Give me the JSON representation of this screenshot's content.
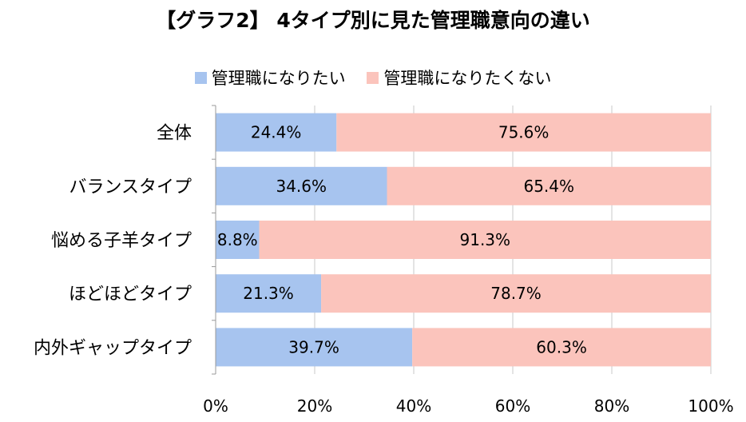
{
  "chart_data": {
    "type": "bar",
    "orientation": "horizontal",
    "stacked": true,
    "title": "【グラフ2】 4タイプ別に見た管理職意向の違い",
    "categories": [
      "全体",
      "バランスタイプ",
      "悩める子羊タイプ",
      "ほどほどタイプ",
      "内外ギャップタイプ"
    ],
    "series": [
      {
        "name": "管理職になりたい",
        "color": "#a7c4ef",
        "values": [
          24.4,
          34.6,
          8.8,
          21.3,
          39.7
        ],
        "labels": [
          "24.4%",
          "34.6%",
          "8.8%",
          "21.3%",
          "39.7%"
        ]
      },
      {
        "name": "管理職になりたくない",
        "color": "#fbc4bc",
        "values": [
          75.6,
          65.4,
          91.3,
          78.7,
          60.3
        ],
        "labels": [
          "75.6%",
          "65.4%",
          "91.3%",
          "78.7%",
          "60.3%"
        ]
      }
    ],
    "xlim": [
      0,
      100
    ],
    "xticks": [
      "0%",
      "20%",
      "40%",
      "60%",
      "80%",
      "100%"
    ],
    "grid": true,
    "legend_position": "top"
  }
}
